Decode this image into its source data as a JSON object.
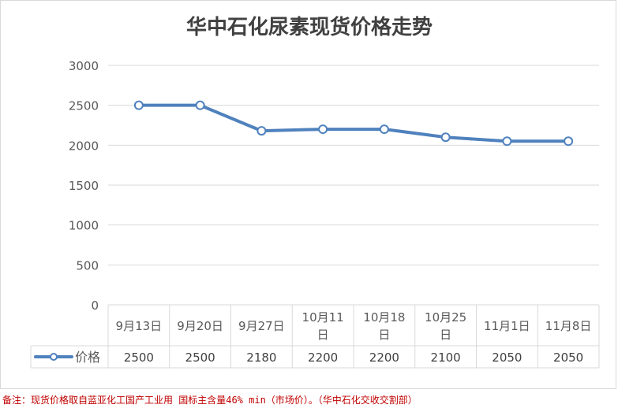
{
  "chart_data": {
    "type": "line",
    "title": "华中石化尿素现货价格走势",
    "categories": [
      [
        "9月13日"
      ],
      [
        "9月20日"
      ],
      [
        "9月27日"
      ],
      [
        "10月11",
        "日"
      ],
      [
        "10月18",
        "日"
      ],
      [
        "10月25",
        "日"
      ],
      [
        "11月1日"
      ],
      [
        "11月8日"
      ]
    ],
    "series": [
      {
        "name": "价格",
        "values": [
          2500,
          2500,
          2180,
          2200,
          2200,
          2100,
          2050,
          2050
        ]
      }
    ],
    "ylim": [
      0,
      3000
    ],
    "yticks": [
      0,
      500,
      1000,
      1500,
      2000,
      2500,
      3000
    ],
    "grid": true,
    "legend": "data-table",
    "data_table": true,
    "colors": {
      "line": "#4f81bd",
      "marker_fill": "#ffffff",
      "grid": "#d9d9d9"
    }
  },
  "footnote": "备注：现货价格取自蓝亚化工国产工业用 国标主含量46% min（市场价）。（华中石化交收交割部）"
}
